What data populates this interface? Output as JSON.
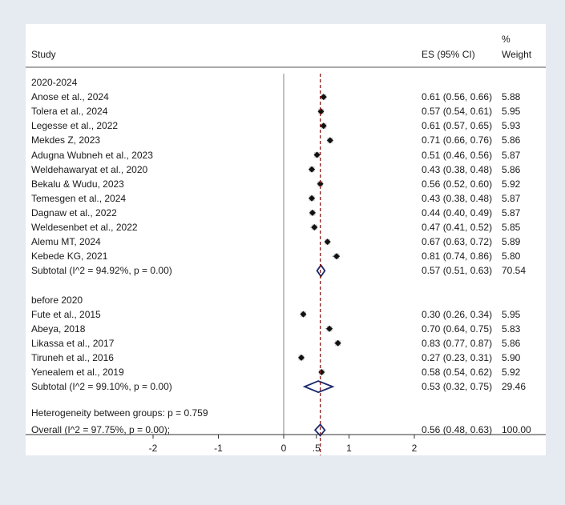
{
  "chart_data": {
    "type": "forest",
    "columns": {
      "study": "Study",
      "es": "ES (95% CI)",
      "weight_line1": "%",
      "weight_line2": "Weight"
    },
    "null_line": 0,
    "overall_line": 0.56,
    "x_ticks": [
      {
        "value": -2,
        "label": "-2"
      },
      {
        "value": -1,
        "label": "-1"
      },
      {
        "value": 0,
        "label": "0"
      },
      {
        "value": 0.5,
        "label": ".5"
      },
      {
        "value": 1,
        "label": "1"
      },
      {
        "value": 2,
        "label": "2"
      }
    ],
    "xlim": [
      -4,
      4
    ],
    "groups": [
      {
        "label": "2020-2024",
        "studies": [
          {
            "name": "Anose et al., 2024",
            "es": 0.61,
            "lo": 0.56,
            "hi": 0.66,
            "ci": "0.61 (0.56, 0.66)",
            "weight": "5.88"
          },
          {
            "name": "Tolera et al., 2024",
            "es": 0.57,
            "lo": 0.54,
            "hi": 0.61,
            "ci": "0.57 (0.54, 0.61)",
            "weight": "5.95"
          },
          {
            "name": "Legesse et al., 2022",
            "es": 0.61,
            "lo": 0.57,
            "hi": 0.65,
            "ci": "0.61 (0.57, 0.65)",
            "weight": "5.93"
          },
          {
            "name": "Mekdes Z, 2023",
            "es": 0.71,
            "lo": 0.66,
            "hi": 0.76,
            "ci": "0.71 (0.66, 0.76)",
            "weight": "5.86"
          },
          {
            "name": "Adugna Wubneh et al., 2023",
            "es": 0.51,
            "lo": 0.46,
            "hi": 0.56,
            "ci": "0.51 (0.46, 0.56)",
            "weight": "5.87"
          },
          {
            "name": "Weldehawaryat et al., 2020",
            "es": 0.43,
            "lo": 0.38,
            "hi": 0.48,
            "ci": "0.43 (0.38, 0.48)",
            "weight": "5.86"
          },
          {
            "name": "Bekalu & Wudu, 2023",
            "es": 0.56,
            "lo": 0.52,
            "hi": 0.6,
            "ci": "0.56 (0.52, 0.60)",
            "weight": "5.92"
          },
          {
            "name": "Temesgen et al., 2024",
            "es": 0.43,
            "lo": 0.38,
            "hi": 0.48,
            "ci": "0.43 (0.38, 0.48)",
            "weight": "5.87"
          },
          {
            "name": "Dagnaw et al., 2022",
            "es": 0.44,
            "lo": 0.4,
            "hi": 0.49,
            "ci": "0.44 (0.40, 0.49)",
            "weight": "5.87"
          },
          {
            "name": "Weldesenbet et al., 2022",
            "es": 0.47,
            "lo": 0.41,
            "hi": 0.52,
            "ci": "0.47 (0.41, 0.52)",
            "weight": "5.85"
          },
          {
            "name": "Alemu MT, 2024",
            "es": 0.67,
            "lo": 0.63,
            "hi": 0.72,
            "ci": "0.67 (0.63, 0.72)",
            "weight": "5.89"
          },
          {
            "name": "Kebede KG, 2021",
            "es": 0.81,
            "lo": 0.74,
            "hi": 0.86,
            "ci": "0.81 (0.74, 0.86)",
            "weight": "5.80"
          }
        ],
        "subtotal": {
          "label": "Subtotal  (I^2 = 94.92%, p = 0.00)",
          "es": 0.57,
          "lo": 0.51,
          "hi": 0.63,
          "ci": "0.57 (0.51, 0.63)",
          "weight": "70.54"
        }
      },
      {
        "label": "before 2020",
        "studies": [
          {
            "name": "Fute et al., 2015",
            "es": 0.3,
            "lo": 0.26,
            "hi": 0.34,
            "ci": "0.30 (0.26, 0.34)",
            "weight": "5.95"
          },
          {
            "name": "Abeya, 2018",
            "es": 0.7,
            "lo": 0.64,
            "hi": 0.75,
            "ci": "0.70 (0.64, 0.75)",
            "weight": "5.83"
          },
          {
            "name": "Likassa et al., 2017",
            "es": 0.83,
            "lo": 0.77,
            "hi": 0.87,
            "ci": "0.83 (0.77, 0.87)",
            "weight": "5.86"
          },
          {
            "name": "Tiruneh et al., 2016",
            "es": 0.27,
            "lo": 0.23,
            "hi": 0.31,
            "ci": "0.27 (0.23, 0.31)",
            "weight": "5.90"
          },
          {
            "name": "Yenealem et al., 2019",
            "es": 0.58,
            "lo": 0.54,
            "hi": 0.62,
            "ci": "0.58 (0.54, 0.62)",
            "weight": "5.92"
          }
        ],
        "subtotal": {
          "label": "Subtotal  (I^2 = 99.10%, p = 0.00)",
          "es": 0.53,
          "lo": 0.32,
          "hi": 0.75,
          "ci": "0.53 (0.32, 0.75)",
          "weight": "29.46"
        }
      }
    ],
    "heterogeneity": "Heterogeneity between groups: p = 0.759",
    "overall": {
      "label": "Overall  (I^2 = 97.75%, p = 0.00);",
      "es": 0.56,
      "lo": 0.48,
      "hi": 0.63,
      "ci": "0.56 (0.48, 0.63)",
      "weight": "100.00"
    },
    "colors": {
      "text": "#1a1a1a",
      "marker": "#111111",
      "diamond": "#1b2a6b",
      "ref_line": "#8b1a1a",
      "axis": "#333333",
      "frame_bg": "#ffffff",
      "page_bg": "#e5ebf0"
    }
  }
}
